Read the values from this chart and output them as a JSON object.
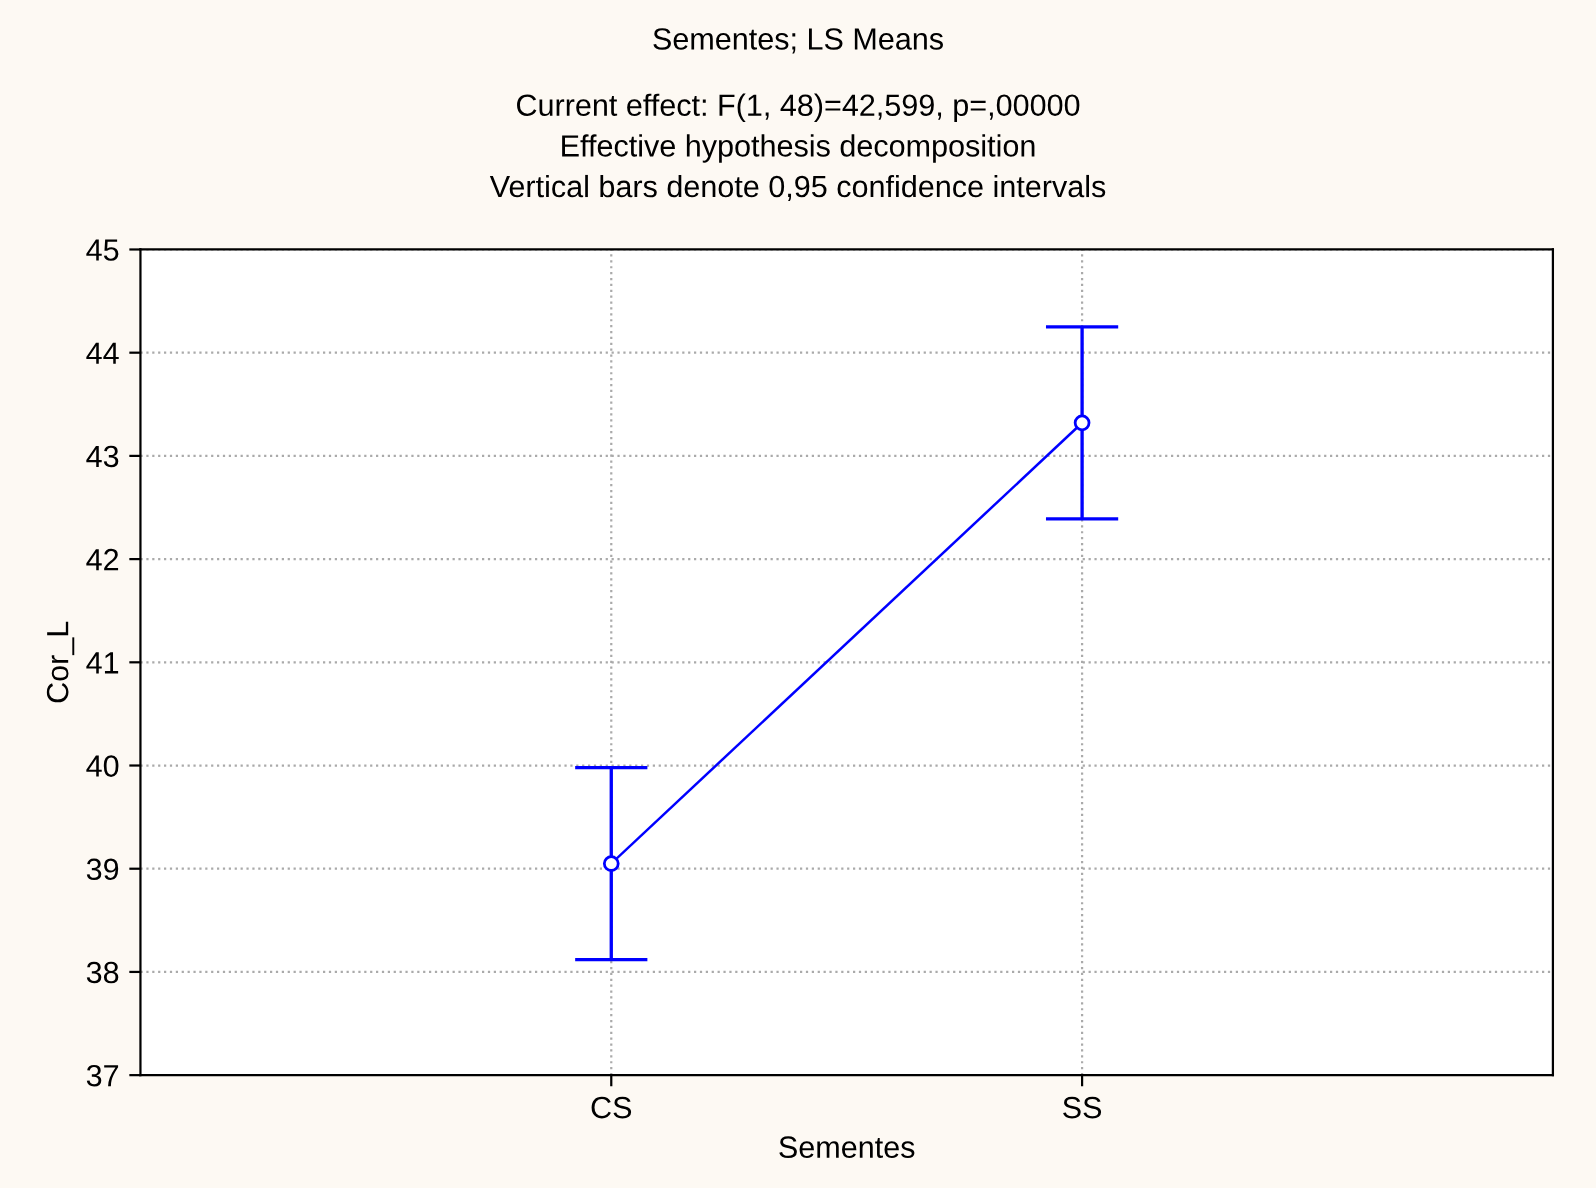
{
  "chart_data": {
    "type": "line",
    "title": "Sementes; LS Means",
    "subtitle": "Current effect: F(1, 48)=42,599, p=,00000\nEffective hypothesis decomposition\nVertical bars denote 0,95 confidence intervals",
    "xlabel": "Sementes",
    "ylabel": "Cor_L",
    "categories": [
      "CS",
      "SS"
    ],
    "values": [
      39.05,
      43.32
    ],
    "errors": [
      0.93,
      0.93
    ],
    "color": "#0000ff",
    "ylim": [
      37,
      45
    ],
    "yticks": [
      37,
      38,
      39,
      40,
      41,
      42,
      43,
      44,
      45
    ],
    "grid": true,
    "marker": "circle",
    "line_style": "solid"
  }
}
